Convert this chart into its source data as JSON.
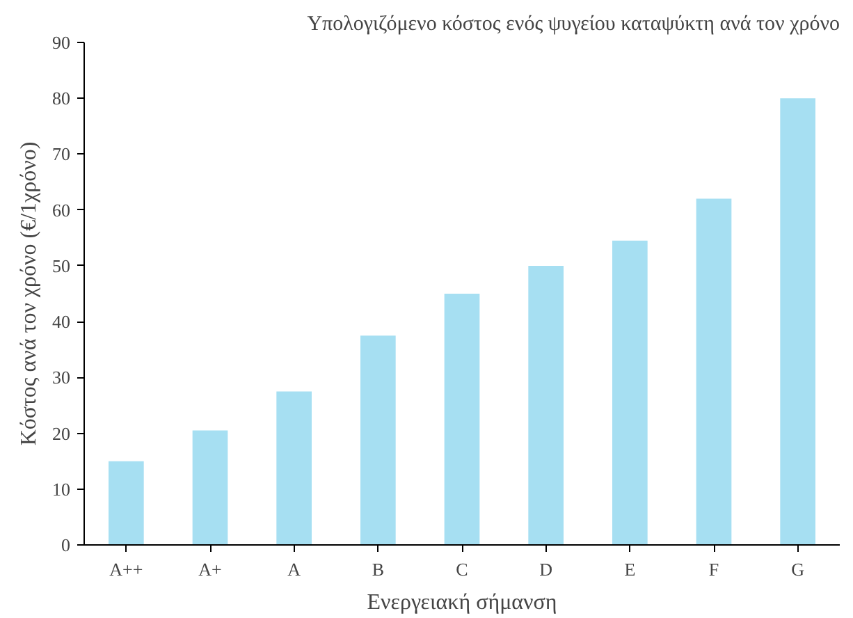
{
  "chart_data": {
    "type": "bar",
    "title": "Υπολογιζόμενο κόστος ενός ψυγείου καταψύκτη ανά τον χρόνο",
    "xlabel": "Ενεργειακή σήμανση",
    "ylabel": "Κόστος ανά τον χρόνο (€/1χρόνο)",
    "categories": [
      "A++",
      "A+",
      "A",
      "B",
      "C",
      "D",
      "E",
      "F",
      "G"
    ],
    "values": [
      15,
      20.5,
      27.5,
      37.5,
      45,
      50,
      54.5,
      62,
      80
    ],
    "color": "#a6dff2",
    "ylim": [
      0,
      90
    ],
    "yticks": [
      0,
      10,
      20,
      30,
      40,
      50,
      60,
      70,
      80,
      90
    ]
  }
}
